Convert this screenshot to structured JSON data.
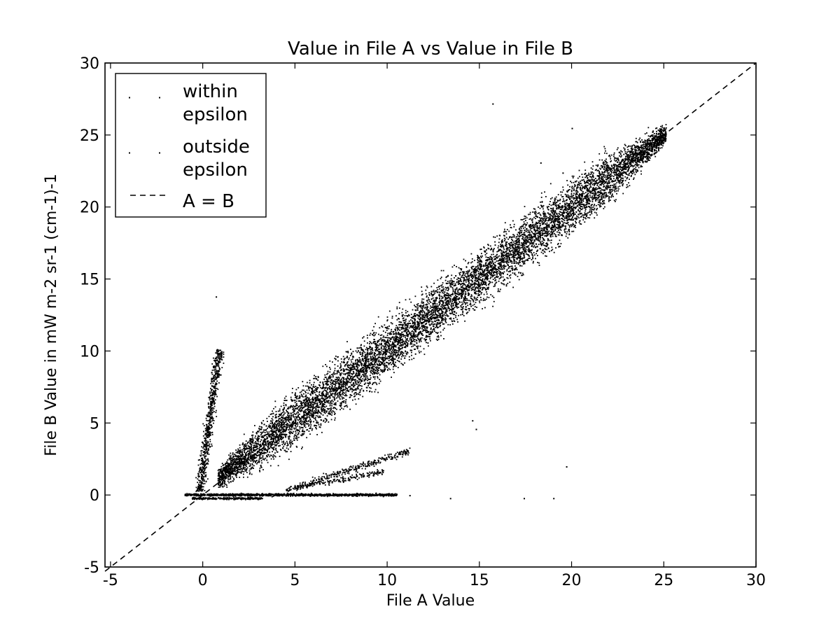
{
  "chart_data": {
    "type": "scatter",
    "title": "Value in File A vs Value in File B",
    "xlabel": "File A Value",
    "ylabel": "File B Value in mW m-2 sr-1 (cm-1)-1",
    "xlim": [
      -5.3,
      30
    ],
    "ylim": [
      -5,
      30
    ],
    "xticks": [
      -5,
      0,
      5,
      10,
      15,
      20,
      25,
      30
    ],
    "yticks": [
      -5,
      0,
      5,
      10,
      15,
      20,
      25,
      30
    ],
    "xtick_labels": [
      "-5",
      "0",
      "5",
      "10",
      "15",
      "20",
      "25",
      "30"
    ],
    "ytick_labels": [
      "-5",
      "0",
      "5",
      "10",
      "15",
      "20",
      "25",
      "30"
    ],
    "grid": false,
    "legend_position": "top-left",
    "legend": [
      {
        "label_lines": [
          "within",
          "epsilon"
        ],
        "marker": "point"
      },
      {
        "label_lines": [
          "outside",
          "epsilon"
        ],
        "marker": "point"
      },
      {
        "label_lines": [
          "A = B"
        ],
        "marker": "dashed-line"
      }
    ],
    "reference_line": {
      "name": "A = B",
      "style": "dashed",
      "x": [
        -5.3,
        30
      ],
      "y": [
        -5.3,
        30
      ]
    },
    "colors": {
      "points": "#000000",
      "line": "#000000",
      "background": "#ffffff"
    },
    "series": [
      {
        "name": "within epsilon",
        "clusters": [
          {
            "shape": "band",
            "x": [
              0.8,
              25.1
            ],
            "y": [
              1.2,
              25.1
            ],
            "half_width_b": 2.2,
            "density": 9000
          },
          {
            "shape": "band",
            "x": [
              -0.2,
              0.9
            ],
            "y": [
              0.2,
              10.2
            ],
            "half_width_a": 0.35,
            "density": 700
          },
          {
            "shape": "band",
            "x": [
              -1.0,
              10.5
            ],
            "y": [
              0.05,
              0.05
            ],
            "half_width_b": 0.1,
            "density": 1200
          },
          {
            "shape": "band",
            "x": [
              -0.6,
              3.2
            ],
            "y": [
              -0.2,
              -0.2
            ],
            "half_width_b": 0.08,
            "density": 300
          },
          {
            "shape": "band",
            "x": [
              5.0,
              11.2
            ],
            "y": [
              0.6,
              3.1
            ],
            "half_width_b": 0.3,
            "density": 300
          },
          {
            "shape": "band",
            "x": [
              4.5,
              9.8
            ],
            "y": [
              0.4,
              1.7
            ],
            "half_width_b": 0.25,
            "density": 200
          }
        ]
      },
      {
        "name": "outside epsilon",
        "points": [
          [
            15.7,
            27.2
          ],
          [
            0.7,
            13.8
          ],
          [
            19.7,
            2.0
          ],
          [
            14.6,
            5.2
          ],
          [
            14.8,
            4.6
          ],
          [
            13.4,
            -0.2
          ],
          [
            17.4,
            -0.2
          ],
          [
            19.0,
            -0.2
          ],
          [
            11.2,
            0.0
          ],
          [
            20.0,
            25.5
          ],
          [
            18.3,
            23.1
          ],
          [
            19.5,
            22.4
          ]
        ]
      }
    ]
  }
}
